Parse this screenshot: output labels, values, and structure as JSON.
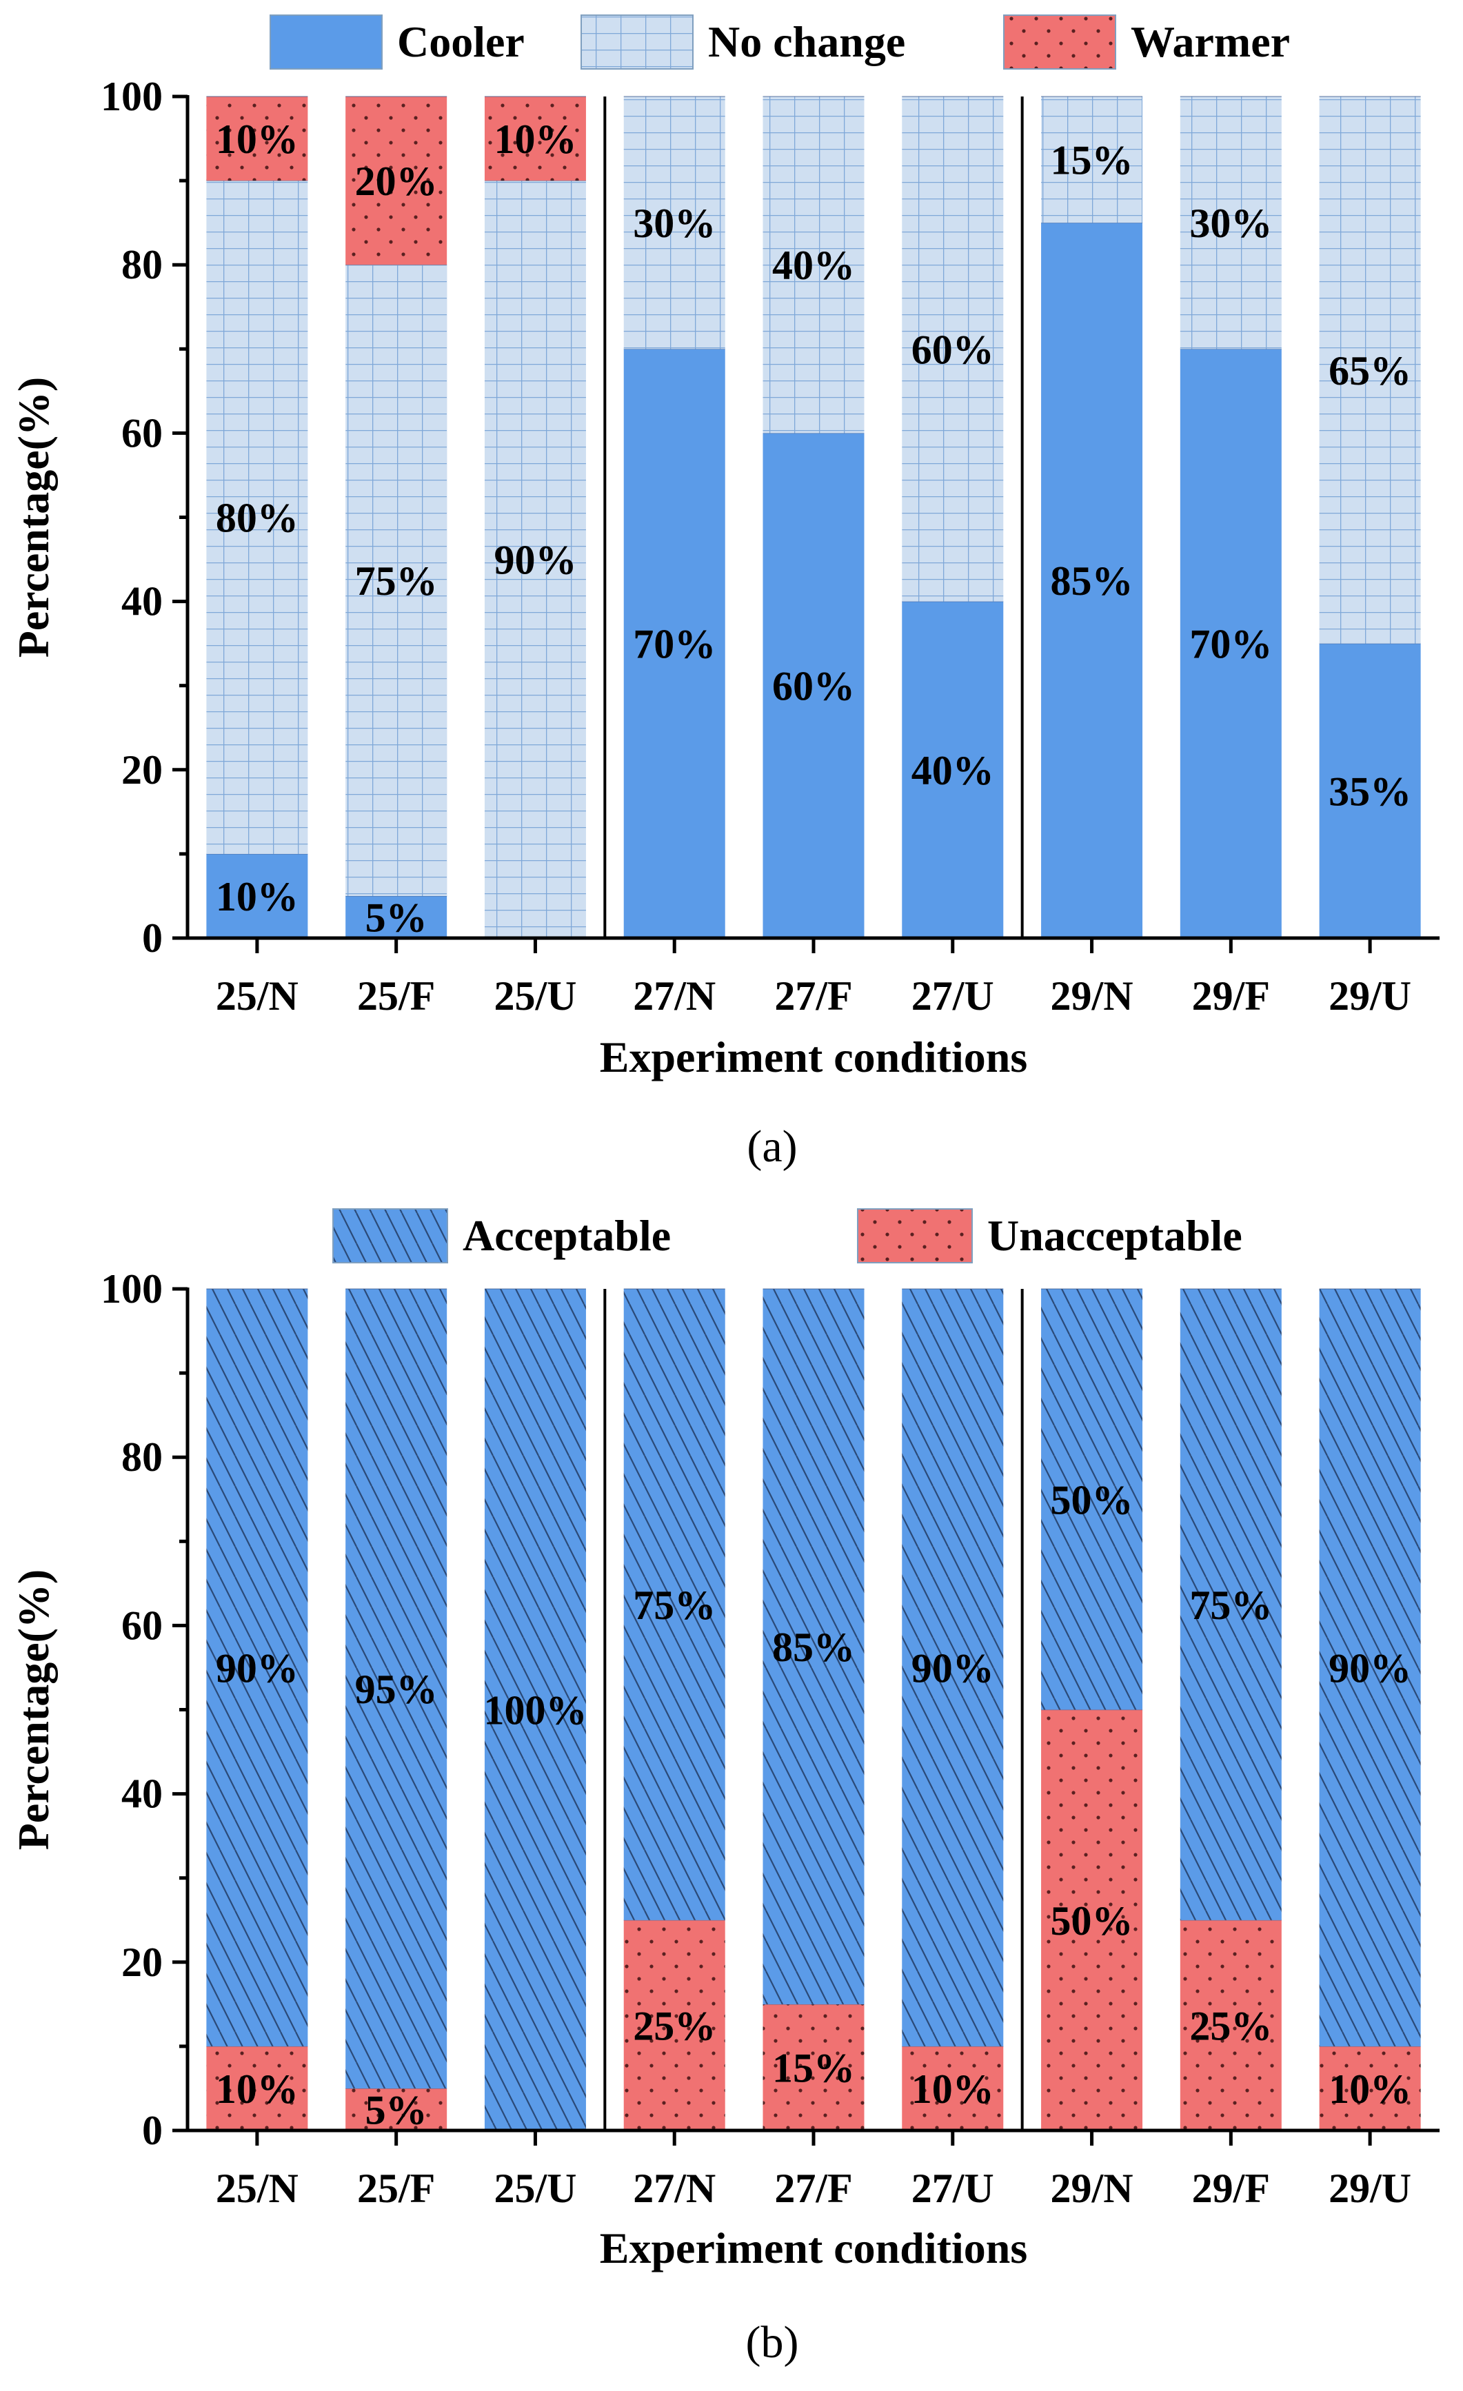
{
  "colors": {
    "cooler": "#5b9be8",
    "no_change": "#cfdff1",
    "no_change_grid": "#7fa8d8",
    "warmer": "#f07272",
    "acceptable": "#5b9be8",
    "unacceptable": "#f07272"
  },
  "chart_data": [
    {
      "type": "bar",
      "stacked": true,
      "caption": "(a)",
      "xlabel": "Experiment conditions",
      "ylabel": "Percentage(%)",
      "ylim": [
        0,
        100
      ],
      "yticks": [
        "0",
        "20",
        "40",
        "60",
        "80",
        "100"
      ],
      "legend_position": "top",
      "categories": [
        "25/N",
        "25/F",
        "25/U",
        "27/N",
        "27/F",
        "27/U",
        "29/N",
        "29/F",
        "29/U"
      ],
      "group_separators_after": [
        2,
        5
      ],
      "series": [
        {
          "name": "Cooler",
          "key": "cooler",
          "pattern": "solid",
          "values": [
            10,
            5,
            0,
            70,
            60,
            40,
            85,
            70,
            35
          ],
          "labels": [
            "10%",
            "5%",
            "",
            "70%",
            "60%",
            "40%",
            "85%",
            "70%",
            "35%"
          ]
        },
        {
          "name": "No change",
          "key": "no_change",
          "pattern": "grid",
          "values": [
            80,
            75,
            90,
            30,
            40,
            60,
            15,
            30,
            65
          ],
          "labels": [
            "80%",
            "75%",
            "90%",
            "30%",
            "40%",
            "60%",
            "15%",
            "30%",
            "65%"
          ]
        },
        {
          "name": "Warmer",
          "key": "warmer",
          "pattern": "dots",
          "values": [
            10,
            20,
            10,
            0,
            0,
            0,
            0,
            0,
            0
          ],
          "labels": [
            "10%",
            "20%",
            "10%",
            "",
            "",
            "",
            "",
            "",
            ""
          ]
        }
      ]
    },
    {
      "type": "bar",
      "stacked": true,
      "caption": "(b)",
      "xlabel": "Experiment conditions",
      "ylabel": "Percentage(%)",
      "ylim": [
        0,
        100
      ],
      "yticks": [
        "0",
        "20",
        "40",
        "60",
        "80",
        "100"
      ],
      "legend_position": "top",
      "categories": [
        "25/N",
        "25/F",
        "25/U",
        "27/N",
        "27/F",
        "27/U",
        "29/N",
        "29/F",
        "29/U"
      ],
      "group_separators_after": [
        2,
        5
      ],
      "series": [
        {
          "name": "Unacceptable",
          "key": "unacceptable",
          "pattern": "dots",
          "values": [
            10,
            5,
            0,
            25,
            15,
            10,
            50,
            25,
            10
          ],
          "labels": [
            "10%",
            "5%",
            "",
            "25%",
            "15%",
            "10%",
            "50%",
            "25%",
            "10%"
          ]
        },
        {
          "name": "Acceptable",
          "key": "acceptable",
          "pattern": "hatch",
          "values": [
            90,
            95,
            100,
            75,
            85,
            90,
            50,
            75,
            90
          ],
          "labels": [
            "90%",
            "95%",
            "100%",
            "75%",
            "85%",
            "90%",
            "50%",
            "75%",
            "90%"
          ]
        }
      ],
      "legend_order": [
        "acceptable",
        "unacceptable"
      ]
    }
  ]
}
